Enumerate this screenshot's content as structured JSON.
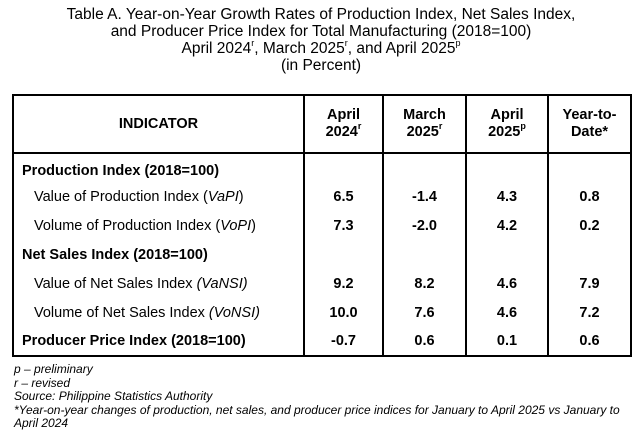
{
  "title": {
    "line1": "Table A. Year-on-Year Growth Rates of Production Index, Net Sales Index,",
    "line2": "and Producer Price Index for Total Manufacturing (2018=100)",
    "line3_a": "April 2024",
    "line3_a_sup": "r",
    "line3_b": ", March 2025",
    "line3_b_sup": "r",
    "line3_c": ", and April 2025",
    "line3_c_sup": "p",
    "line4": "(in Percent)"
  },
  "table": {
    "header": {
      "indicator": "INDICATOR",
      "col1_line1": "April",
      "col1_line2": "2024",
      "col1_sup": "r",
      "col2_line1": "March",
      "col2_line2": "2025",
      "col2_sup": "r",
      "col3_line1": "April",
      "col3_line2": "2025",
      "col3_sup": "p",
      "col4_line1": "Year-to-",
      "col4_line2": "Date*"
    },
    "sections": [
      {
        "label": "Production Index (2018=100)",
        "rows": [
          {
            "label": "Value of Production Index (",
            "abbr": "VaPI",
            "close": ")",
            "values": [
              "6.5",
              "-1.4",
              "4.3",
              "0.8"
            ]
          },
          {
            "label": "Volume of Production Index (",
            "abbr": "VoPI",
            "close": ")",
            "values": [
              "7.3",
              "-2.0",
              "4.2",
              "0.2"
            ]
          }
        ]
      },
      {
        "label": "Net Sales Index (2018=100)",
        "rows": [
          {
            "label": "Value of Net Sales Index ",
            "abbr": "(VaNSI)",
            "close": "",
            "values": [
              "9.2",
              "8.2",
              "4.6",
              "7.9"
            ]
          },
          {
            "label": "Volume of Net Sales Index ",
            "abbr": "(VoNSI)",
            "close": "",
            "values": [
              "10.0",
              "7.6",
              "4.6",
              "7.2"
            ]
          }
        ]
      }
    ],
    "ppi": {
      "label": "Producer Price Index (2018=100)",
      "values": [
        "-0.7",
        "0.6",
        "0.1",
        "0.6"
      ]
    }
  },
  "notes": {
    "p": "p – preliminary",
    "r": "r – revised",
    "source": "Source: Philippine Statistics Authority",
    "footnote": "*Year-on-year changes of production, net sales, and producer price indices for January to April 2025 vs January to April 2024"
  }
}
